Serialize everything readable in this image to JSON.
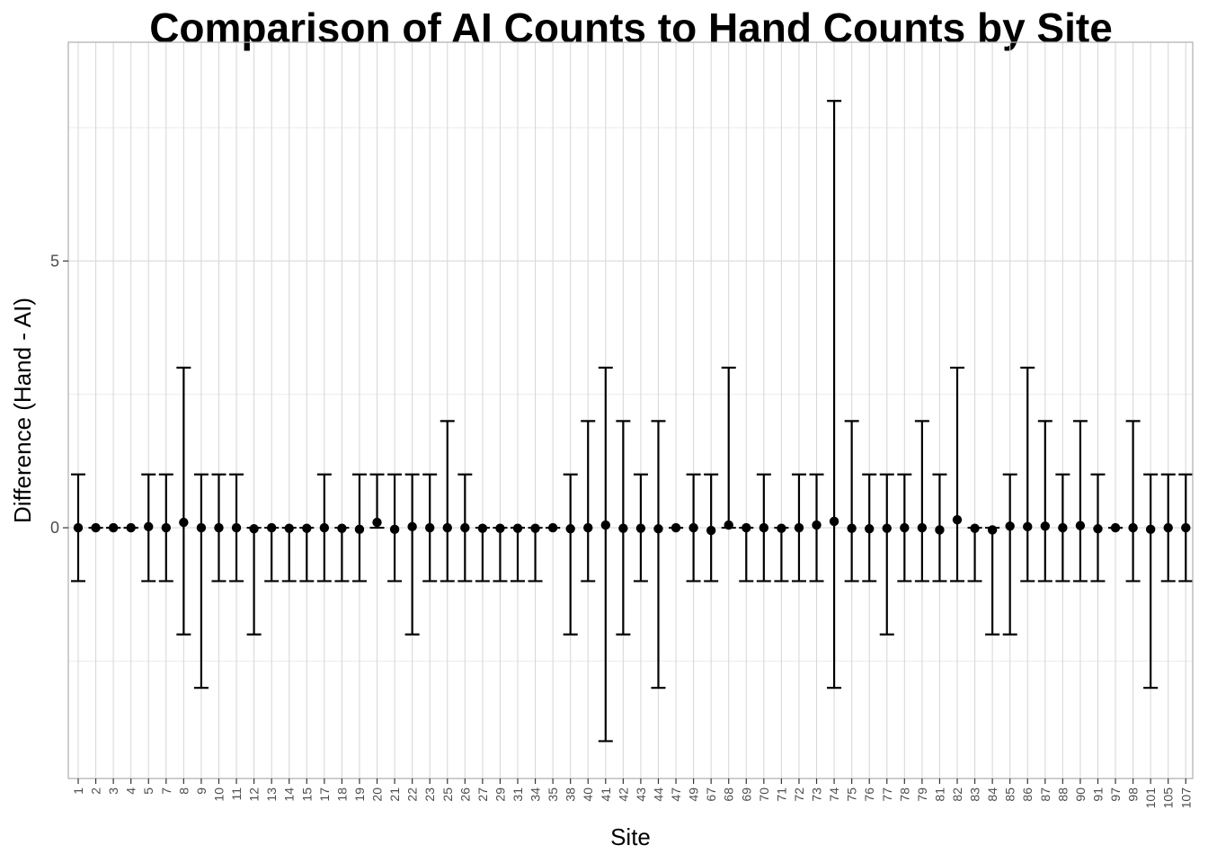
{
  "chart_data": {
    "type": "scatter",
    "title": "Comparison of AI Counts to Hand Counts by Site",
    "xlabel": "Site",
    "ylabel": "Difference (Hand - AI)",
    "ylim": [
      -4.7,
      9.1
    ],
    "yticks": [
      0,
      5
    ],
    "grid": true,
    "categories": [
      "1",
      "2",
      "3",
      "4",
      "5",
      "7",
      "8",
      "9",
      "10",
      "11",
      "12",
      "13",
      "14",
      "15",
      "17",
      "18",
      "19",
      "20",
      "21",
      "22",
      "23",
      "25",
      "26",
      "27",
      "29",
      "31",
      "34",
      "35",
      "38",
      "40",
      "41",
      "42",
      "43",
      "44",
      "47",
      "49",
      "67",
      "68",
      "69",
      "70",
      "71",
      "72",
      "73",
      "74",
      "75",
      "76",
      "77",
      "78",
      "79",
      "81",
      "82",
      "83",
      "84",
      "85",
      "86",
      "87",
      "88",
      "90",
      "91",
      "97",
      "98",
      "101",
      "105",
      "107"
    ],
    "series": [
      {
        "points": [
          {
            "site": "1",
            "mean": 0,
            "lower": -1,
            "upper": 1
          },
          {
            "site": "2",
            "mean": 0,
            "lower": 0,
            "upper": 0
          },
          {
            "site": "3",
            "mean": 0,
            "lower": 0,
            "upper": 0
          },
          {
            "site": "4",
            "mean": 0,
            "lower": 0,
            "upper": 0
          },
          {
            "site": "5",
            "mean": 0.02,
            "lower": -1,
            "upper": 1
          },
          {
            "site": "7",
            "mean": 0,
            "lower": -1,
            "upper": 1
          },
          {
            "site": "8",
            "mean": 0.1,
            "lower": -2,
            "upper": 3
          },
          {
            "site": "9",
            "mean": 0,
            "lower": -3,
            "upper": 1
          },
          {
            "site": "10",
            "mean": 0,
            "lower": -1,
            "upper": 1
          },
          {
            "site": "11",
            "mean": 0,
            "lower": -1,
            "upper": 1
          },
          {
            "site": "12",
            "mean": -0.02,
            "lower": -2,
            "upper": 0
          },
          {
            "site": "13",
            "mean": 0,
            "lower": -1,
            "upper": 0
          },
          {
            "site": "14",
            "mean": -0.01,
            "lower": -1,
            "upper": 0
          },
          {
            "site": "15",
            "mean": -0.01,
            "lower": -1,
            "upper": 0
          },
          {
            "site": "17",
            "mean": 0,
            "lower": -1,
            "upper": 1
          },
          {
            "site": "18",
            "mean": -0.01,
            "lower": -1,
            "upper": 0
          },
          {
            "site": "19",
            "mean": -0.03,
            "lower": -1,
            "upper": 1
          },
          {
            "site": "20",
            "mean": 0.1,
            "lower": 0,
            "upper": 1
          },
          {
            "site": "21",
            "mean": -0.03,
            "lower": -1,
            "upper": 1
          },
          {
            "site": "22",
            "mean": 0.02,
            "lower": -2,
            "upper": 1
          },
          {
            "site": "23",
            "mean": 0,
            "lower": -1,
            "upper": 1
          },
          {
            "site": "25",
            "mean": 0,
            "lower": -1,
            "upper": 2
          },
          {
            "site": "26",
            "mean": 0,
            "lower": -1,
            "upper": 1
          },
          {
            "site": "27",
            "mean": -0.01,
            "lower": -1,
            "upper": 0
          },
          {
            "site": "29",
            "mean": -0.01,
            "lower": -1,
            "upper": 0
          },
          {
            "site": "31",
            "mean": -0.01,
            "lower": -1,
            "upper": 0
          },
          {
            "site": "34",
            "mean": -0.01,
            "lower": -1,
            "upper": 0
          },
          {
            "site": "35",
            "mean": 0,
            "lower": 0,
            "upper": 0
          },
          {
            "site": "38",
            "mean": -0.02,
            "lower": -2,
            "upper": 1
          },
          {
            "site": "40",
            "mean": 0,
            "lower": -1,
            "upper": 2
          },
          {
            "site": "41",
            "mean": 0.05,
            "lower": -4,
            "upper": 3
          },
          {
            "site": "42",
            "mean": -0.01,
            "lower": -2,
            "upper": 2
          },
          {
            "site": "43",
            "mean": -0.01,
            "lower": -1,
            "upper": 1
          },
          {
            "site": "44",
            "mean": -0.02,
            "lower": -3,
            "upper": 2
          },
          {
            "site": "47",
            "mean": 0,
            "lower": 0,
            "upper": 0
          },
          {
            "site": "49",
            "mean": 0,
            "lower": -1,
            "upper": 1
          },
          {
            "site": "67",
            "mean": -0.05,
            "lower": -1,
            "upper": 1
          },
          {
            "site": "68",
            "mean": 0.05,
            "lower": 0,
            "upper": 3
          },
          {
            "site": "69",
            "mean": 0,
            "lower": -1,
            "upper": 0
          },
          {
            "site": "70",
            "mean": 0,
            "lower": -1,
            "upper": 1
          },
          {
            "site": "71",
            "mean": -0.01,
            "lower": -1,
            "upper": 0
          },
          {
            "site": "72",
            "mean": 0,
            "lower": -1,
            "upper": 1
          },
          {
            "site": "73",
            "mean": 0.05,
            "lower": -1,
            "upper": 1
          },
          {
            "site": "74",
            "mean": 0.12,
            "lower": -3,
            "upper": 8
          },
          {
            "site": "75",
            "mean": -0.01,
            "lower": -1,
            "upper": 2
          },
          {
            "site": "76",
            "mean": -0.02,
            "lower": -1,
            "upper": 1
          },
          {
            "site": "77",
            "mean": -0.01,
            "lower": -2,
            "upper": 1
          },
          {
            "site": "78",
            "mean": 0,
            "lower": -1,
            "upper": 1
          },
          {
            "site": "79",
            "mean": 0,
            "lower": -1,
            "upper": 2
          },
          {
            "site": "81",
            "mean": -0.04,
            "lower": -1,
            "upper": 1
          },
          {
            "site": "82",
            "mean": 0.15,
            "lower": -1,
            "upper": 3
          },
          {
            "site": "83",
            "mean": -0.01,
            "lower": -1,
            "upper": 0
          },
          {
            "site": "84",
            "mean": -0.04,
            "lower": -2,
            "upper": 0
          },
          {
            "site": "85",
            "mean": 0.03,
            "lower": -2,
            "upper": 1
          },
          {
            "site": "86",
            "mean": 0.02,
            "lower": -1,
            "upper": 3
          },
          {
            "site": "87",
            "mean": 0.03,
            "lower": -1,
            "upper": 2
          },
          {
            "site": "88",
            "mean": 0,
            "lower": -1,
            "upper": 1
          },
          {
            "site": "90",
            "mean": 0.04,
            "lower": -1,
            "upper": 2
          },
          {
            "site": "91",
            "mean": -0.02,
            "lower": -1,
            "upper": 1
          },
          {
            "site": "97",
            "mean": 0,
            "lower": 0,
            "upper": 0
          },
          {
            "site": "98",
            "mean": 0,
            "lower": -1,
            "upper": 2
          },
          {
            "site": "101",
            "mean": -0.03,
            "lower": -3,
            "upper": 1
          },
          {
            "site": "105",
            "mean": 0,
            "lower": -1,
            "upper": 1
          },
          {
            "site": "107",
            "mean": 0,
            "lower": -1,
            "upper": 1
          }
        ]
      }
    ],
    "colors": {
      "point": "#000000",
      "errorbar": "#000000",
      "grid_major": "#d9d9d9",
      "grid_minor": "#ebebeb",
      "panel_border": "#b3b3b3",
      "tick_text": "#4d4d4d"
    }
  }
}
